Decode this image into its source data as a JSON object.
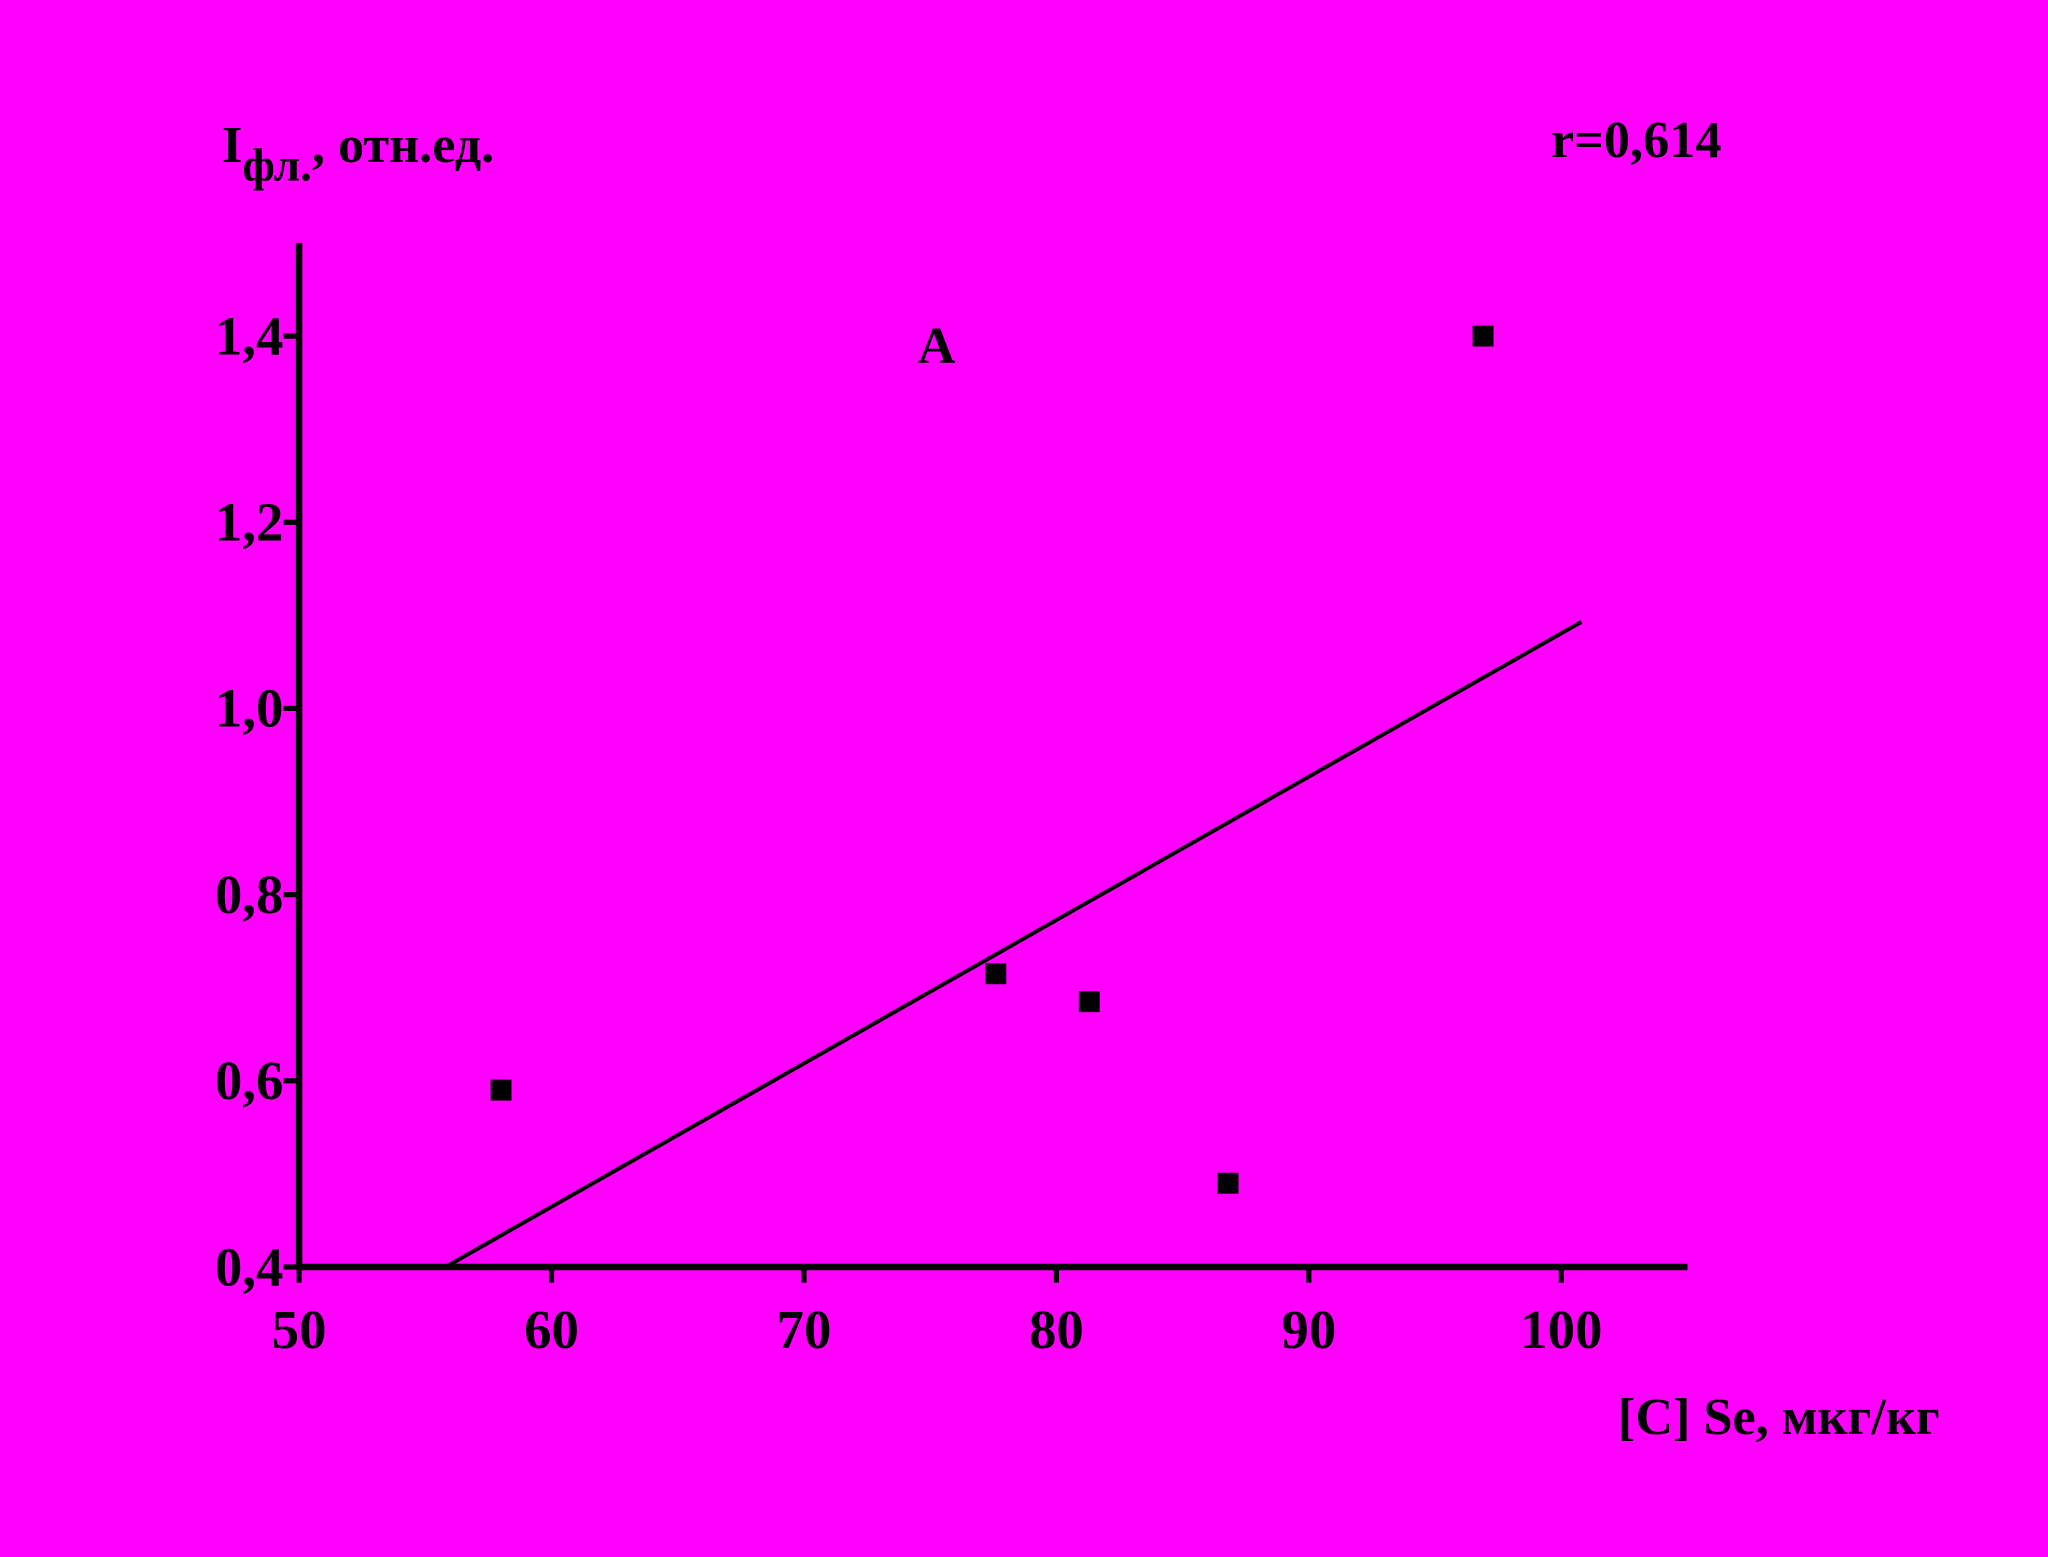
{
  "chart_data": {
    "type": "scatter",
    "ylabel_main": "I",
    "ylabel_sub": "фл.",
    "ylabel_rest": ", отн.ед.",
    "xlabel": "[C] Se, мкг/кг",
    "annotations": [
      "r=0,614",
      "А"
    ],
    "x": [
      58,
      77.6,
      81.3,
      86.8,
      96.9
    ],
    "values": [
      0.59,
      0.715,
      0.685,
      0.49,
      1.4
    ],
    "color": "#000000",
    "trendline": {
      "x": [
        55.8,
        100.8
      ],
      "y": [
        0.4,
        1.093
      ],
      "color": "#000000"
    },
    "xlim": [
      50,
      105
    ],
    "ylim": [
      0.4,
      1.5
    ],
    "xticks": [
      50,
      60,
      70,
      80,
      90,
      100
    ],
    "yticks": [
      {
        "value": 0.4,
        "label": "0,4"
      },
      {
        "value": 0.6,
        "label": "0,6"
      },
      {
        "value": 0.8,
        "label": "0,8"
      },
      {
        "value": 1.0,
        "label": "1,0"
      },
      {
        "value": 1.2,
        "label": "1,2"
      },
      {
        "value": 1.4,
        "label": "1,4"
      }
    ],
    "background": "#ff00ff"
  }
}
